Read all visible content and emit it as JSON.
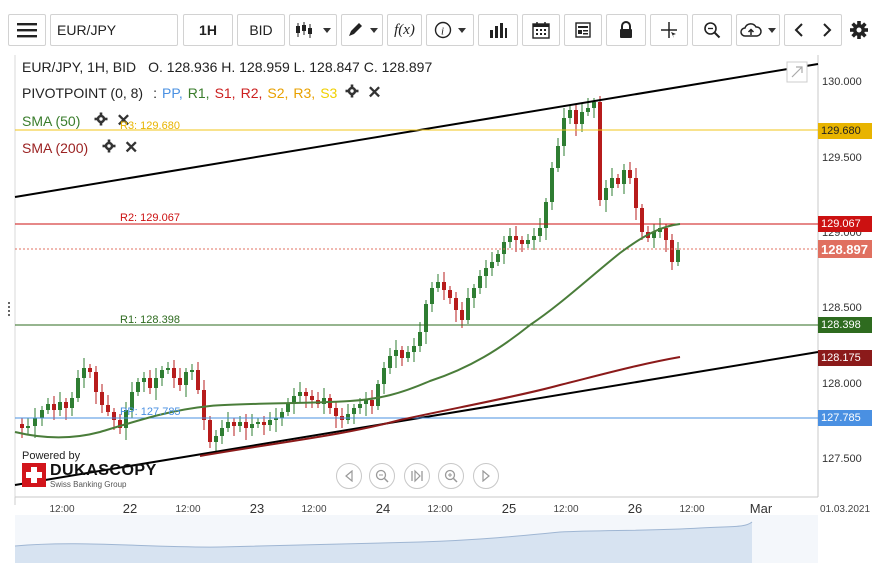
{
  "toolbar": {
    "symbol": "EUR/JPY",
    "timeframe": "1H",
    "side": "BID",
    "icons": [
      "menu-icon",
      "candles-icon",
      "draw-icon",
      "function-icon",
      "info-icon",
      "bar-chart-icon",
      "calendar-icon",
      "news-icon",
      "lock-icon",
      "crosshair-icon",
      "zoom-icon",
      "cloud-upload-icon",
      "chevron-left-icon",
      "chevron-right-icon",
      "settings-icon"
    ],
    "function_label": "f(x)"
  },
  "legend": {
    "title": "EUR/JPY, 1H, BID",
    "ohlc": "O. 128.936 H. 128.959 L. 128.847 C. 128.897",
    "pivot_name": "PIVOTPOINT (0, 8)",
    "pivot_sep": ":",
    "pivot_items": [
      {
        "label": "PP,",
        "color": "#4a90e2"
      },
      {
        "label": "R1,",
        "color": "#3a7d2c"
      },
      {
        "label": "S1,",
        "color": "#cc2020"
      },
      {
        "label": "R2,",
        "color": "#cc2020"
      },
      {
        "label": "S2,",
        "color": "#e8a000"
      },
      {
        "label": "R3,",
        "color": "#e8a000"
      },
      {
        "label": "S3",
        "color": "#f0d000"
      }
    ],
    "sma50": "SMA (50)",
    "sma200": "SMA (200)"
  },
  "price_axis": {
    "ticks": [
      "130.000",
      "129.500",
      "129.000",
      "128.500",
      "128.000",
      "127.500"
    ],
    "tags": [
      {
        "value": "129.680",
        "color": "#e8b400",
        "text_color": "#222222"
      },
      {
        "value": "129.067",
        "color": "#cc1111",
        "text_color": "#ffffff"
      },
      {
        "value": "128.897",
        "color": "#e07060",
        "text_color": "#ffffff"
      },
      {
        "value": "128.398",
        "color": "#2e6b1f",
        "text_color": "#ffffff"
      },
      {
        "value": "128.175",
        "color": "#8b1a1a",
        "text_color": "#ffffff"
      },
      {
        "value": "127.785",
        "color": "#4a90e2",
        "text_color": "#ffffff"
      }
    ]
  },
  "pivot_labels": [
    {
      "text": "R3: 129.680",
      "color": "#e8b400"
    },
    {
      "text": "R2: 129.067",
      "color": "#cc1111"
    },
    {
      "text": "R1: 128.398",
      "color": "#2e6b1f"
    },
    {
      "text": "PP: 127.785",
      "color": "#4a90e2"
    }
  ],
  "date_axis": {
    "ticks": [
      "12:00",
      "22",
      "12:00",
      "23",
      "12:00",
      "24",
      "12:00",
      "25",
      "12:00",
      "26",
      "12:00",
      "Mar"
    ],
    "corner_date": "01.03.2021"
  },
  "branding": {
    "powered_by": "Powered by",
    "name": "DUKASCOPY",
    "sub": "Swiss Banking Group"
  },
  "nav": [
    "scroll-left-icon",
    "zoom-out-icon",
    "reset-icon",
    "zoom-in-icon",
    "scroll-right-icon"
  ],
  "colors": {
    "bull": "#2e7d32",
    "bear": "#b71c1c",
    "sma50": "#4a7d3a",
    "sma200": "#8b1a1a",
    "trend": "#000000"
  }
}
